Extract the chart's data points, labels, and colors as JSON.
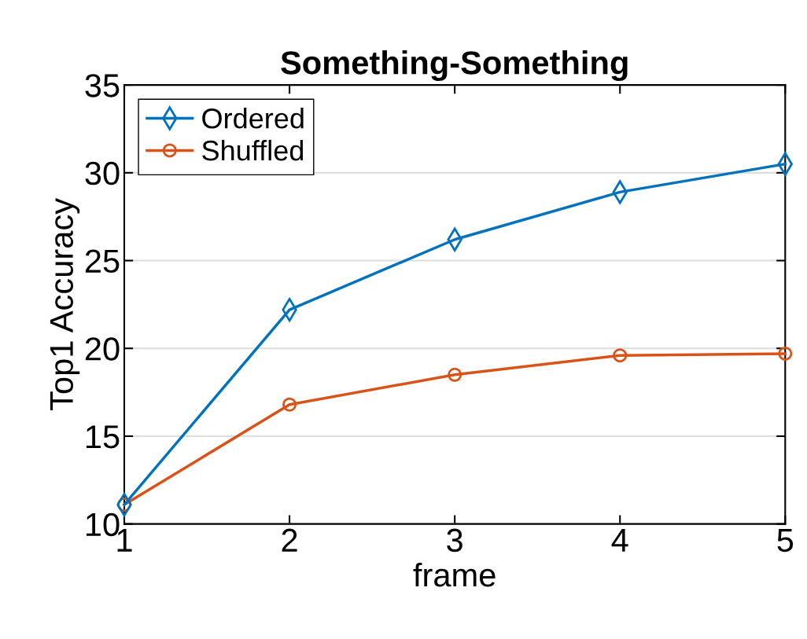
{
  "chart_data": {
    "type": "line",
    "title": "Something-Something",
    "xlabel": "frame",
    "ylabel": "Top1 Accuracy",
    "x": [
      1,
      2,
      3,
      4,
      5
    ],
    "series": [
      {
        "name": "Ordered",
        "color": "#0072bd",
        "marker": "diamond",
        "values": [
          11.1,
          22.2,
          26.2,
          28.9,
          30.5
        ]
      },
      {
        "name": "Shuffled",
        "color": "#d95319",
        "marker": "circle",
        "values": [
          11.1,
          16.8,
          18.5,
          19.6,
          19.7
        ]
      }
    ],
    "xlim": [
      1,
      5
    ],
    "xticks": [
      1,
      2,
      3,
      4,
      5
    ],
    "ylim": [
      10,
      35
    ],
    "yticks": [
      10,
      15,
      20,
      25,
      30,
      35
    ],
    "grid": "y",
    "legend": "top left",
    "line_style": "solid"
  }
}
